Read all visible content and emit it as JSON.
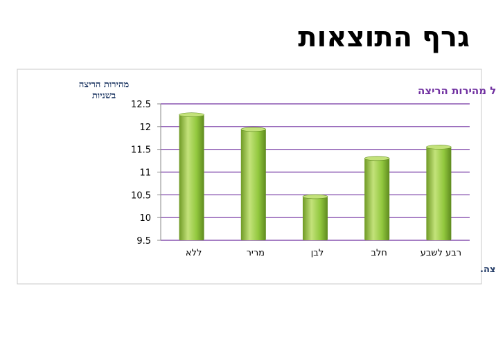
{
  "page": {
    "title": "גרף התוצאות"
  },
  "chart_data": {
    "type": "bar",
    "title": "השפעת סוג השוקולד על מהירות הריצה",
    "ylabel_lines": [
      "מהירות הריצה",
      "בשניות"
    ],
    "xlabel": "סוג השוקולד הנאכל לפני הריצה.",
    "categories": [
      "ללא",
      "מריר",
      "לבן",
      "חלב",
      "רבע לשבע"
    ],
    "values": [
      12.26,
      11.94,
      10.46,
      11.3,
      11.55
    ],
    "ylim": [
      9.5,
      12.5
    ],
    "yticks": [
      "12.5",
      "12",
      "11.5",
      "11",
      "10.5",
      "10",
      "9.5"
    ],
    "grid": true,
    "colors": {
      "bar": "#92c83e",
      "bar_light": "#c3e27a",
      "bar_dark": "#5e8a1e",
      "grid": "#7030a0",
      "title": "#7030a0"
    }
  }
}
